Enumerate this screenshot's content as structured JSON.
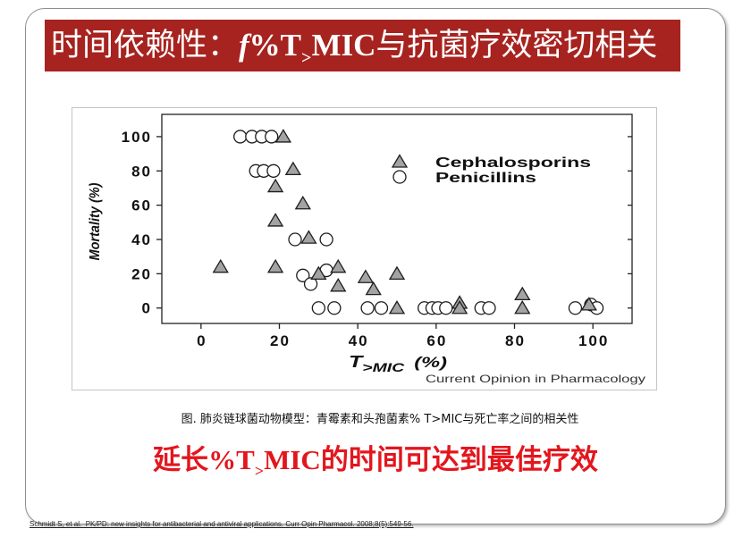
{
  "slide": {
    "title": {
      "prefix": "时间依赖性：",
      "italic_f": "f",
      "pct_t": "%T",
      "subscript": ">",
      "mic": "MIC",
      "suffix": "与抗菌疗效密切相关"
    },
    "caption": "图. 肺炎链球菌动物模型：青霉素和头孢菌素% T>MIC与死亡率之间的相关性",
    "conclusion": {
      "prefix": "延长",
      "pct_t": "%T",
      "subscript": ">",
      "mic": "MIC",
      "suffix": "的时间可达到最佳疗效"
    },
    "reference": "Schmidt S, et al.  PK/PD: new insights for antibacterial and antiviral applications. Curr Opin Pharmacol. 2008;8(5):549-56.",
    "colors": {
      "banner": "#a6231f",
      "banner_text": "#ffffff",
      "conclusion_text": "#e3161d"
    }
  },
  "chart_data": {
    "type": "scatter",
    "xlabel": {
      "main": "T",
      "sub": ">MIC",
      "unit": "(%)"
    },
    "ylabel": "Mortality (%)",
    "xlim": [
      -10,
      110
    ],
    "ylim": [
      -9,
      113
    ],
    "xticks": [
      0,
      20,
      40,
      60,
      80,
      100
    ],
    "yticks": [
      0,
      20,
      40,
      60,
      80,
      100
    ],
    "grid": false,
    "legend_position": "top-right",
    "source": "Current Opinion in Pharmacology",
    "series": [
      {
        "name": "Cephalosporins",
        "marker": "triangle",
        "fill": "#a3a3a3",
        "x": [
          21,
          23.5,
          19,
          26,
          19,
          27.5,
          5,
          19,
          30,
          35,
          35,
          42,
          44,
          50,
          50,
          66,
          66,
          82,
          82,
          99
        ],
        "y": [
          100,
          81,
          71,
          61,
          51,
          41,
          24,
          24,
          20,
          24,
          13,
          18,
          11,
          20,
          0,
          3,
          0,
          8,
          0,
          2
        ]
      },
      {
        "name": "Penicillins",
        "marker": "circle",
        "fill": "#ffffff",
        "x": [
          10,
          13,
          15.5,
          18,
          14,
          16,
          18.5,
          24,
          32,
          26,
          28,
          32,
          30,
          34,
          42.5,
          46,
          57,
          59,
          60.5,
          62.5,
          71.5,
          73.5,
          95.5,
          99.5,
          101
        ],
        "y": [
          100,
          100,
          100,
          100,
          80,
          80,
          80,
          40,
          40,
          19,
          14,
          22,
          0,
          0,
          0,
          0,
          0,
          0,
          0,
          0,
          0,
          0,
          0,
          2,
          0
        ]
      }
    ]
  }
}
